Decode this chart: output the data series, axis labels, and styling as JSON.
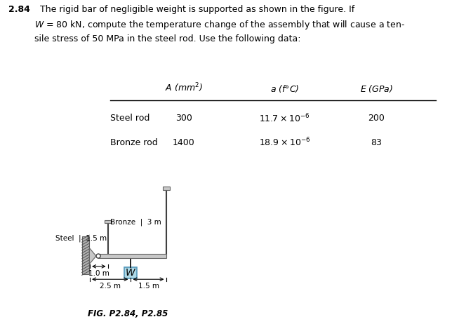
{
  "title_num": "2.84",
  "title_text": "  The rigid bar of negligible weight is supported as shown in the figure. If\n$W$ = 80 kN, compute the temperature change of the assembly that will cause a ten-\nsile stress of 50 MPa in the steel rod. Use the following data:",
  "col_headers": [
    "$A$ (mm$^2$)",
    "$a$ ($f$°C)",
    "$E$ (GPa)"
  ],
  "row_labels": [
    "Steel rod",
    "Bronze rod"
  ],
  "row1_vals": [
    "300",
    "$11.7 \\times 10^{-6}$",
    "200"
  ],
  "row2_vals": [
    "1400",
    "$18.9 \\times 10^{-6}$",
    "83"
  ],
  "fig_caption": "FIG. P2.84, P2.85",
  "label_steel": "Steel",
  "label_steel2": "1.5 m",
  "label_bronze": "Bronze",
  "label_bronze2": "3 m",
  "label_1m": "1.0 m",
  "label_25m": "2.5 m —►",
  "label_15m": "1.5 m",
  "W_label": "W",
  "bg_color": "#ffffff",
  "bar_color": "#c8c8c8",
  "wall_color": "#b0b0b0",
  "rod_color": "#404040",
  "W_box_color": "#add8e6",
  "W_box_edge": "#5599bb"
}
